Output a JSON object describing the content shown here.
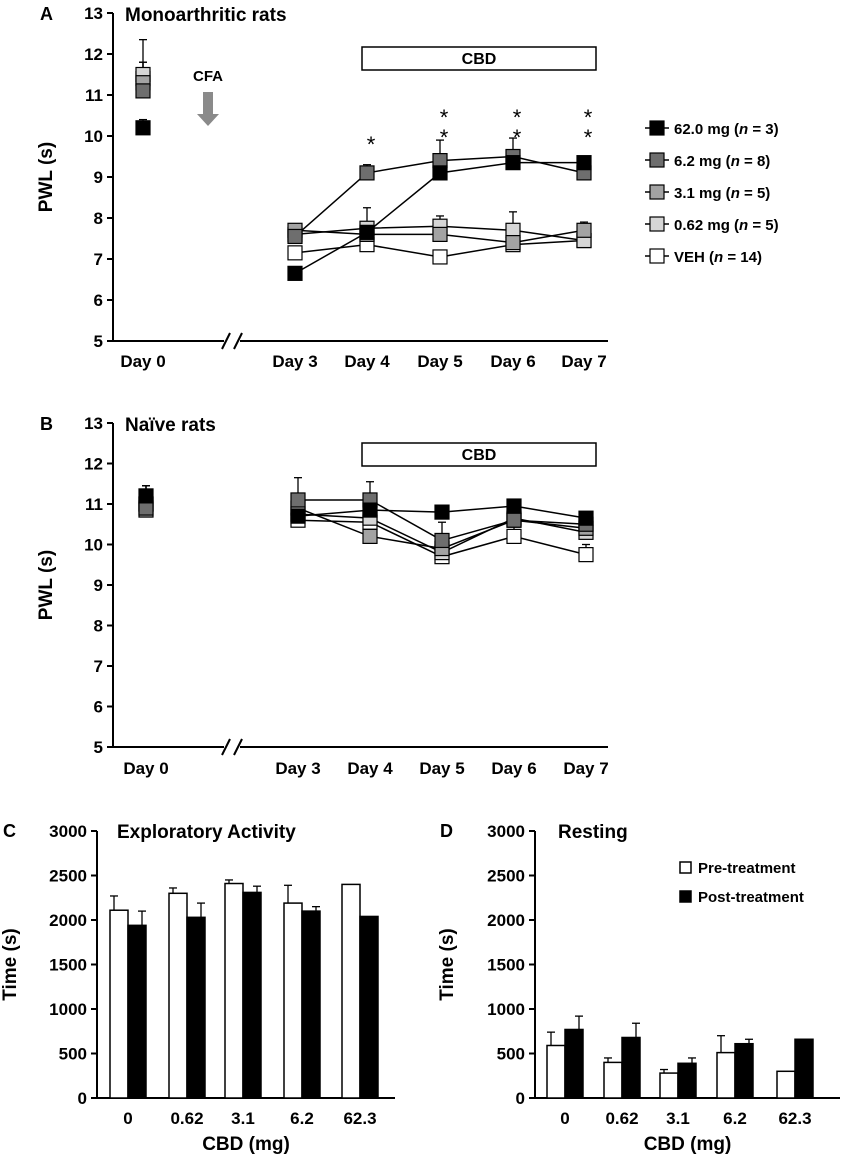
{
  "series_styles": [
    {
      "fill": "#000000"
    },
    {
      "fill": "#6e6e6e"
    },
    {
      "fill": "#a3a3a3"
    },
    {
      "fill": "#d6d6d6"
    },
    {
      "fill": "#ffffff"
    }
  ],
  "chart_data": [
    {
      "panel": "A",
      "type": "line",
      "title": "Monoarthritic rats",
      "xlabel": "",
      "ylabel": "PWL (s)",
      "ylim": [
        5,
        13
      ],
      "yticks": [
        5,
        6,
        7,
        8,
        9,
        10,
        11,
        12,
        13
      ],
      "categories": [
        "Day 0",
        "Day 3",
        "Day 4",
        "Day 5",
        "Day 6",
        "Day 7"
      ],
      "axis_break": true,
      "annotation_cfa": "CFA",
      "cbd_bar_label": "CBD",
      "significance": [
        {
          "category": "Day 4",
          "text": "*"
        },
        {
          "category": "Day 5",
          "text": "* *"
        },
        {
          "category": "Day 6",
          "text": "* *"
        },
        {
          "category": "Day 7",
          "text": "* *"
        }
      ],
      "legend": [
        {
          "dose": "62.0 mg",
          "n": "n",
          "count": "= 3)"
        },
        {
          "dose": "6.2 mg",
          "n": "n",
          "count": "= 8)"
        },
        {
          "dose": "3.1 mg",
          "n": "n",
          "count": "= 5)"
        },
        {
          "dose": "0.62 mg",
          "n": "n",
          "count": "= 5)"
        },
        {
          "dose": "VEH",
          "n": "n",
          "count": "= 14)"
        }
      ],
      "series": [
        {
          "name": "62.0 mg (n = 3)",
          "values": [
            10.2,
            6.65,
            7.65,
            9.1,
            9.35,
            9.35
          ],
          "err": [
            0.2,
            0.05,
            0.1,
            0.15,
            0.2,
            0.15
          ]
        },
        {
          "name": "6.2 mg (n = 8)",
          "values": [
            11.1,
            7.55,
            9.1,
            9.4,
            9.5,
            9.1
          ],
          "err": [
            0.3,
            0.15,
            0.2,
            0.5,
            0.45,
            0.3
          ]
        },
        {
          "name": "3.1 mg (n = 5)",
          "values": [
            11.3,
            7.7,
            7.6,
            7.6,
            7.4,
            7.7
          ],
          "err": [
            0.5,
            0.1,
            0.25,
            0.2,
            0.2,
            0.2
          ]
        },
        {
          "name": "0.62 mg (n = 5)",
          "values": [
            11.5,
            7.6,
            7.75,
            7.8,
            7.7,
            7.45
          ],
          "err": [
            0.85,
            0.1,
            0.5,
            0.25,
            0.45,
            0.2
          ]
        },
        {
          "name": "VEH (n = 14)",
          "values": [
            11.4,
            7.15,
            7.35,
            7.05,
            7.35,
            7.45
          ],
          "err": [
            0.4,
            0.15,
            0.2,
            0.1,
            0.4,
            0.25
          ]
        }
      ]
    },
    {
      "panel": "B",
      "type": "line",
      "title": "Naïve rats",
      "xlabel": "",
      "ylabel": "PWL (s)",
      "ylim": [
        5,
        13
      ],
      "yticks": [
        5,
        6,
        7,
        8,
        9,
        10,
        11,
        12,
        13
      ],
      "categories": [
        "Day 0",
        "Day 3",
        "Day 4",
        "Day 5",
        "Day 6",
        "Day 7"
      ],
      "axis_break": true,
      "cbd_bar_label": "CBD",
      "series": [
        {
          "name": "62.0 mg",
          "values": [
            11.2,
            10.7,
            10.85,
            10.8,
            10.95,
            10.65
          ],
          "err": [
            0.25,
            0.3,
            0.3,
            0.1,
            0.15,
            0.15
          ]
        },
        {
          "name": "6.2 mg",
          "values": [
            10.9,
            11.1,
            11.1,
            10.1,
            10.6,
            10.5
          ],
          "err": [
            0.3,
            0.55,
            0.45,
            0.45,
            0.35,
            0.3
          ]
        },
        {
          "name": "3.1 mg",
          "values": [
            10.85,
            10.9,
            10.2,
            9.9,
            10.6,
            10.4
          ],
          "err": [
            0.6,
            0.3,
            0.15,
            0.35,
            0.3,
            0.3
          ]
        },
        {
          "name": "0.62 mg",
          "values": [
            11.0,
            10.75,
            10.65,
            9.8,
            10.65,
            10.3
          ],
          "err": [
            0.45,
            0.3,
            0.3,
            0.25,
            0.35,
            0.3
          ]
        },
        {
          "name": "VEH",
          "values": [
            11.0,
            10.6,
            10.55,
            9.7,
            10.2,
            9.75
          ],
          "err": [
            0.3,
            0.3,
            0.25,
            0.1,
            0.45,
            0.25
          ]
        }
      ]
    },
    {
      "panel": "C",
      "type": "bar",
      "title": "Exploratory Activity",
      "xlabel": "CBD (mg)",
      "ylabel": "Time (s)",
      "ylim": [
        0,
        3000
      ],
      "yticks": [
        0,
        500,
        1000,
        1500,
        2000,
        2500,
        3000
      ],
      "categories": [
        "0",
        "0.62",
        "3.1",
        "6.2",
        "62.3"
      ],
      "series": [
        {
          "name": "Pre-treatment",
          "values": [
            2110,
            2300,
            2410,
            2190,
            2400
          ],
          "err": [
            160,
            60,
            40,
            200,
            0
          ]
        },
        {
          "name": "Post-treatment",
          "values": [
            1940,
            2030,
            2310,
            2100,
            2040
          ],
          "err": [
            160,
            160,
            70,
            50,
            0
          ]
        }
      ]
    },
    {
      "panel": "D",
      "type": "bar",
      "title": "Resting",
      "xlabel": "CBD (mg)",
      "ylabel": "Time (s)",
      "ylim": [
        0,
        3000
      ],
      "yticks": [
        0,
        500,
        1000,
        1500,
        2000,
        2500,
        3000
      ],
      "categories": [
        "0",
        "0.62",
        "3.1",
        "6.2",
        "62.3"
      ],
      "legend": [
        "Pre-treatment",
        "Post-treatment"
      ],
      "series": [
        {
          "name": "Pre-treatment",
          "values": [
            590,
            400,
            280,
            510,
            300
          ],
          "err": [
            150,
            50,
            40,
            190,
            0
          ]
        },
        {
          "name": "Post-treatment",
          "values": [
            770,
            680,
            390,
            610,
            660
          ],
          "err": [
            150,
            160,
            60,
            50,
            0
          ]
        }
      ]
    }
  ]
}
